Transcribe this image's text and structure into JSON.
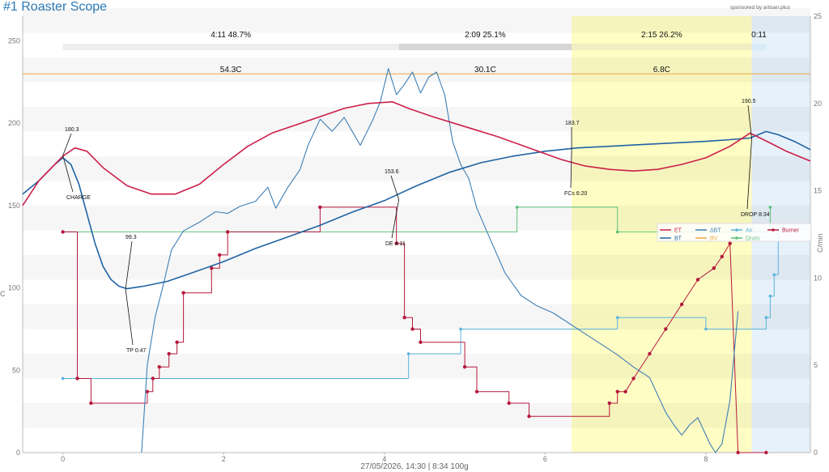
{
  "title": "#1 Roaster Scope",
  "sponsor": "sponsored by artisan.plus",
  "footer": "27/05/2026, 14:30   |   8:34   100g",
  "colors": {
    "et": "#cc1f4a",
    "bt": "#1f63a3",
    "dbt": "#3d7fb5",
    "air": "#5ab4dc",
    "drum": "#5bc07a",
    "burner": "#b5183c",
    "bar": "#f0a540",
    "yellow": "#fefdc4",
    "cooling": "#e6f1fa"
  },
  "chart_data": {
    "type": "line",
    "xlim": [
      -0.5,
      9.3
    ],
    "ylim_left": [
      0,
      265
    ],
    "ylim_right": [
      0,
      25
    ],
    "x_ticks": [
      0,
      2,
      4,
      6,
      8
    ],
    "y_ticks_left": [
      0,
      50,
      100,
      150,
      200,
      250
    ],
    "y_ticks_right": [
      0,
      5,
      10,
      15,
      20,
      25
    ],
    "ylabel_left": "C",
    "ylabel_right": "C/min",
    "phases": [
      {
        "time": "4:11",
        "pct": "48.7%",
        "delta": "54.3C",
        "start": 0,
        "end": 4.18
      },
      {
        "time": "2:09",
        "pct": "25.1%",
        "delta": "30.1C",
        "start": 4.18,
        "end": 6.33
      },
      {
        "time": "2:15",
        "pct": "26.2%",
        "delta": "6.8C",
        "start": 6.33,
        "end": 8.57
      },
      {
        "time": "0:11",
        "pct": "",
        "delta": "",
        "start": 8.57,
        "end": 8.75
      }
    ],
    "horizontal_line": 230,
    "annotations": [
      {
        "label": "CHARGE",
        "value": "180.3",
        "x": 0,
        "y": 180.3
      },
      {
        "label": "TP 0:47",
        "value": "99.3",
        "x": 0.78,
        "y": 99.3
      },
      {
        "label": "DE 4:11",
        "value": "153.6",
        "x": 4.18,
        "y": 153.6
      },
      {
        "label": "FCs 6:20",
        "value": "183.7",
        "x": 6.33,
        "y": 183.7
      },
      {
        "label": "DROP 8:34",
        "value": "190.5",
        "x": 8.57,
        "y": 190.5
      }
    ],
    "legend": [
      "ET",
      "BT",
      "ΔBT",
      "BV",
      "Air",
      "Drum",
      "Burner"
    ],
    "series": [
      {
        "name": "ET",
        "x": [
          -0.5,
          -0.3,
          0,
          0.15,
          0.3,
          0.5,
          0.8,
          1.1,
          1.4,
          1.7,
          2,
          2.3,
          2.6,
          2.9,
          3.2,
          3.5,
          3.8,
          4.1,
          4.3,
          4.6,
          5,
          5.4,
          5.8,
          6.2,
          6.5,
          6.8,
          7.1,
          7.4,
          7.7,
          8,
          8.3,
          8.55,
          8.8,
          9,
          9.3
        ],
        "y": [
          150,
          165,
          180,
          185,
          183,
          173,
          162,
          157,
          157,
          163,
          175,
          186,
          194,
          199,
          204,
          209,
          212,
          213,
          209,
          204,
          198,
          192,
          185,
          178,
          174,
          172,
          171,
          172,
          175,
          179,
          186,
          194,
          188,
          183,
          177
        ]
      },
      {
        "name": "BT",
        "x": [
          -0.5,
          -0.3,
          -0.1,
          0,
          0.1,
          0.2,
          0.3,
          0.4,
          0.5,
          0.6,
          0.7,
          0.8,
          1,
          1.3,
          1.6,
          2,
          2.4,
          2.8,
          3.2,
          3.6,
          4,
          4.4,
          4.8,
          5.2,
          5.6,
          6,
          6.4,
          6.8,
          7.2,
          7.6,
          8,
          8.3,
          8.55,
          8.75,
          8.9,
          9.1,
          9.3
        ],
        "y": [
          157,
          165,
          175,
          179,
          175,
          163,
          145,
          127,
          113,
          105,
          101,
          99.5,
          101,
          104,
          109,
          116,
          124,
          131,
          138,
          146,
          153,
          162,
          170,
          176,
          180,
          183,
          185,
          186,
          187,
          188,
          189,
          190,
          191,
          195,
          193,
          189,
          184
        ]
      },
      {
        "name": "ΔBT",
        "x": [
          0.98,
          1.05,
          1.15,
          1.25,
          1.35,
          1.5,
          1.7,
          1.9,
          2.05,
          2.2,
          2.4,
          2.55,
          2.65,
          2.8,
          2.95,
          3.05,
          3.2,
          3.35,
          3.5,
          3.6,
          3.7,
          3.85,
          3.95,
          4.05,
          4.15,
          4.25,
          4.35,
          4.45,
          4.55,
          4.65,
          4.75,
          4.85,
          4.95,
          5.05,
          5.15,
          5.3,
          5.5,
          5.7,
          5.9,
          6.1,
          6.3,
          6.5,
          6.7,
          6.9,
          7.1,
          7.3,
          7.5,
          7.6,
          7.7,
          7.8,
          7.9,
          8,
          8.05,
          8.12,
          8.2,
          8.3,
          8.4
        ],
        "y": [
          0,
          5,
          7.8,
          9.6,
          11.6,
          12.7,
          13.2,
          13.8,
          13.7,
          14.1,
          14.4,
          15.2,
          14,
          15.2,
          16.2,
          17.6,
          19.1,
          18.4,
          19.2,
          18.4,
          17.6,
          19.0,
          20.1,
          22.0,
          20.5,
          21.1,
          21.8,
          20.6,
          21.5,
          21.8,
          20.5,
          17.8,
          16.5,
          15.7,
          14.0,
          12.4,
          10.3,
          9.0,
          8.4,
          8.0,
          7.4,
          6.8,
          6.2,
          5.6,
          4.9,
          4.3,
          2.3,
          1.6,
          1.0,
          1.6,
          2.0,
          1.0,
          0.5,
          0,
          0.5,
          3.0,
          8.1
        ]
      },
      {
        "name": "Air",
        "x": [
          0,
          4.3,
          4.3,
          4.95,
          4.95,
          6.9,
          6.9,
          8,
          8,
          8.75,
          8.75,
          8.8,
          8.8,
          8.85,
          8.85,
          8.9,
          8.9
        ],
        "y": [
          45,
          45,
          60,
          60,
          75,
          75,
          82,
          82,
          75,
          75,
          82,
          82,
          95,
          95,
          108,
          108,
          135
        ]
      },
      {
        "name": "Drum",
        "x": [
          0,
          5.65,
          5.65,
          6.9,
          6.9,
          8.8,
          8.8
        ],
        "y": [
          134,
          134,
          149,
          149,
          134,
          134,
          149
        ]
      },
      {
        "name": "Burner",
        "x": [
          0,
          0.18,
          0.18,
          0.35,
          0.35,
          1.05,
          1.05,
          1.12,
          1.12,
          1.2,
          1.2,
          1.32,
          1.32,
          1.42,
          1.42,
          1.5,
          1.5,
          1.85,
          1.85,
          1.95,
          1.95,
          2.05,
          2.05,
          3.2,
          3.2,
          4.15,
          4.15,
          4.25,
          4.25,
          4.35,
          4.35,
          4.45,
          4.45,
          5,
          5,
          5.15,
          5.15,
          5.55,
          5.55,
          5.8,
          5.8,
          6.8,
          6.8,
          6.9,
          6.9,
          7,
          7.1,
          7.1,
          7.3,
          7.3,
          7.5,
          7.5,
          7.7,
          7.7,
          7.9,
          7.9,
          8.1,
          8.1,
          8.2,
          8.2,
          8.3,
          8.3,
          8.4,
          8.4,
          8.75,
          8.75
        ],
        "y": [
          134,
          134,
          45,
          45,
          30,
          30,
          37,
          37,
          45,
          45,
          52,
          52,
          60,
          60,
          67,
          67,
          97,
          97,
          112,
          112,
          120,
          120,
          134,
          134,
          149,
          149,
          127,
          127,
          82,
          82,
          75,
          75,
          67,
          67,
          52,
          52,
          37,
          37,
          30,
          30,
          22,
          22,
          30,
          30,
          37,
          37,
          45,
          45,
          60,
          60,
          75,
          75,
          90,
          90,
          105,
          105,
          112,
          112,
          119,
          119,
          127,
          127,
          0,
          0,
          0,
          0
        ]
      }
    ]
  }
}
